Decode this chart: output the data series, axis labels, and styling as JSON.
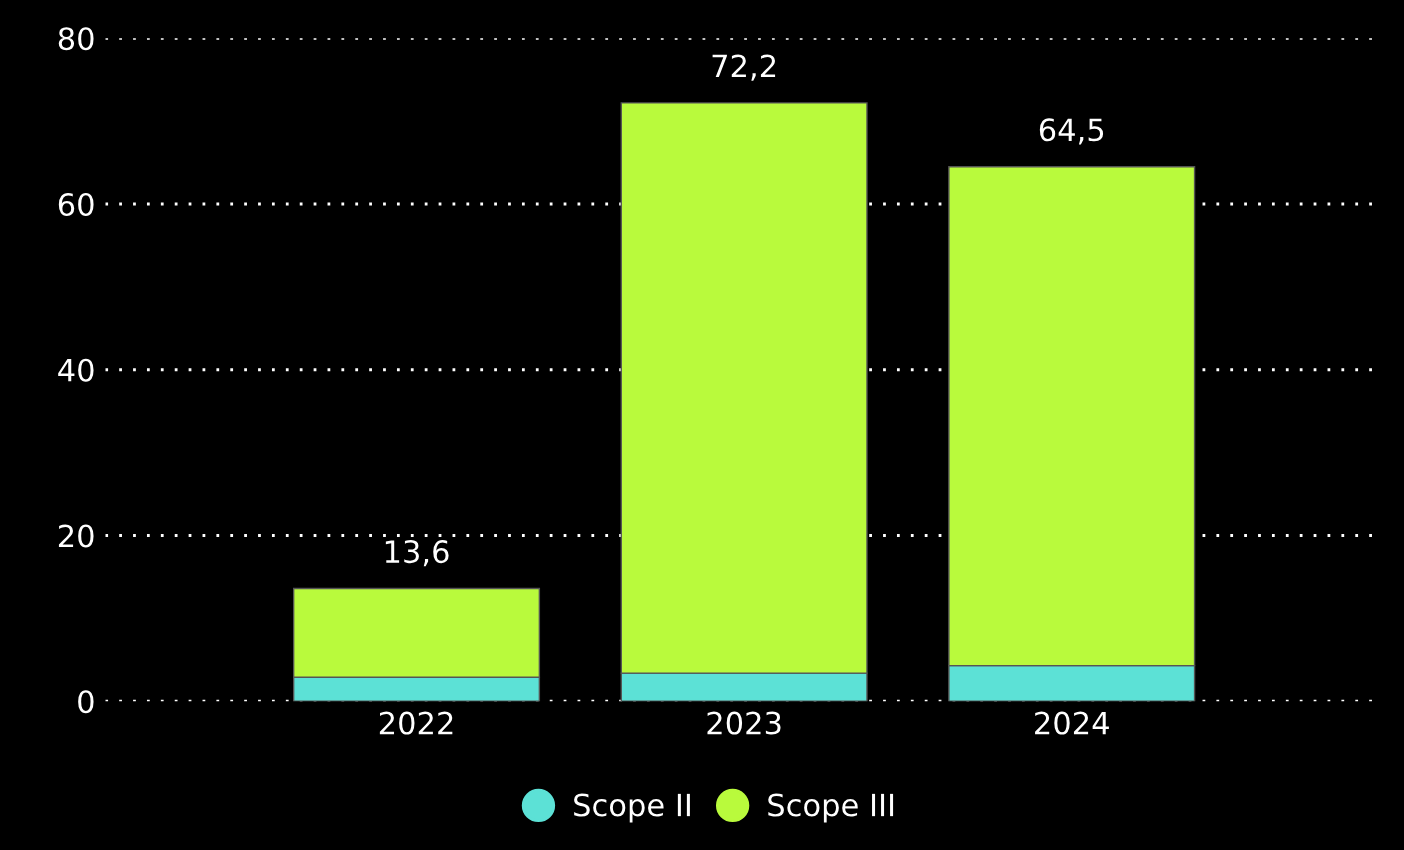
{
  "chart_data": {
    "type": "bar",
    "stacked": true,
    "categories": [
      "2022",
      "2023",
      "2024"
    ],
    "series": [
      {
        "name": "Scope II",
        "color": "#5ce1d6",
        "values": [
          2.9,
          3.4,
          4.3
        ]
      },
      {
        "name": "Scope III",
        "color": "#b9fa3c",
        "values": [
          10.7,
          68.8,
          60.2
        ]
      }
    ],
    "totals": [
      "13,6",
      "72,2",
      "64,5"
    ],
    "ylim": [
      0,
      80
    ],
    "yticks": [
      0,
      20,
      40,
      60,
      80
    ],
    "grid": "y",
    "legend": "bottom"
  }
}
